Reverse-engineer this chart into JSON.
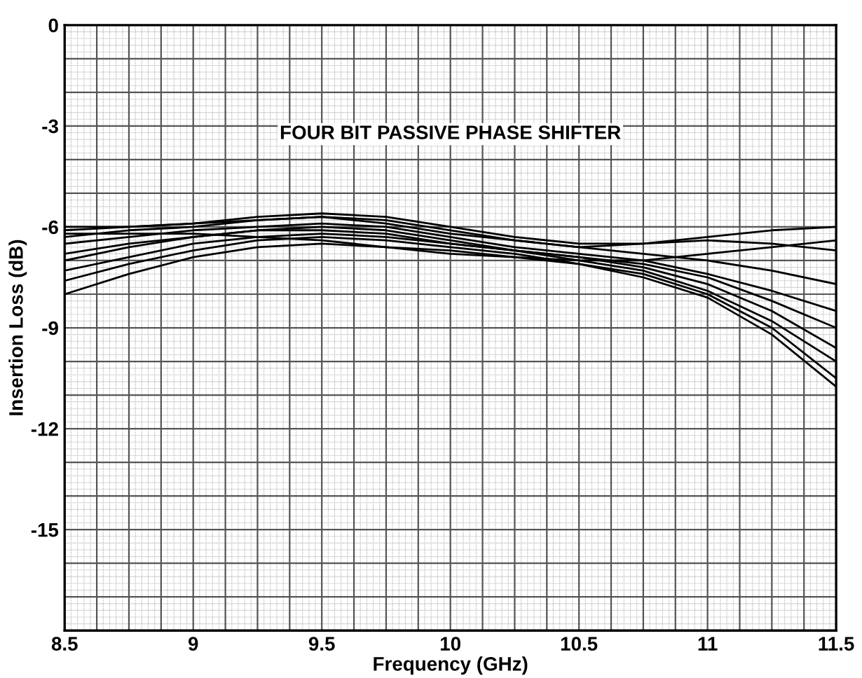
{
  "chart_data": {
    "type": "line",
    "title": "FOUR BIT PASSIVE PHASE SHIFTER",
    "xlabel": "Frequency (GHz)",
    "ylabel": "Insertion Loss (dB)",
    "x": [
      8.5,
      8.75,
      9,
      9.25,
      9.5,
      9.75,
      10,
      10.25,
      10.5,
      10.75,
      11,
      11.25,
      11.5
    ],
    "xlim": [
      8.5,
      11.5
    ],
    "xticks": [
      8.5,
      9,
      9.5,
      10,
      10.5,
      11,
      11.5
    ],
    "ylim": [
      -18,
      0
    ],
    "yticks": [
      -15,
      -12,
      -9,
      -6,
      -3,
      0
    ],
    "grid": true,
    "marker": "none",
    "line_style": "solid",
    "series": [
      {
        "color": "#000000",
        "values": [
          -6.0,
          -6.0,
          -5.9,
          -5.8,
          -5.7,
          -5.9,
          -6.2,
          -6.4,
          -6.6,
          -6.5,
          -6.3,
          -6.1,
          -6.0
        ]
      },
      {
        "color": "#000000",
        "values": [
          -6.1,
          -6.0,
          -5.9,
          -5.7,
          -5.6,
          -5.7,
          -6.0,
          -6.3,
          -6.5,
          -6.5,
          -6.4,
          -6.5,
          -6.7
        ]
      },
      {
        "color": "#000000",
        "values": [
          -6.3,
          -6.1,
          -6.0,
          -5.8,
          -5.7,
          -5.8,
          -6.1,
          -6.4,
          -6.6,
          -6.8,
          -7.0,
          -7.3,
          -7.7
        ]
      },
      {
        "color": "#000000",
        "values": [
          -6.5,
          -6.3,
          -6.1,
          -6.0,
          -5.9,
          -6.0,
          -6.3,
          -6.6,
          -6.8,
          -7.0,
          -7.4,
          -7.9,
          -8.5
        ]
      },
      {
        "color": "#000000",
        "values": [
          -7.0,
          -6.6,
          -6.3,
          -6.1,
          -6.0,
          -6.1,
          -6.4,
          -6.7,
          -6.9,
          -7.2,
          -7.7,
          -8.5,
          -9.6
        ]
      },
      {
        "color": "#000000",
        "values": [
          -7.3,
          -6.9,
          -6.5,
          -6.3,
          -6.2,
          -6.3,
          -6.5,
          -6.7,
          -7.0,
          -7.3,
          -7.9,
          -8.8,
          -10.0
        ]
      },
      {
        "color": "#000000",
        "values": [
          -7.6,
          -7.1,
          -6.7,
          -6.4,
          -6.3,
          -6.4,
          -6.6,
          -6.8,
          -7.1,
          -7.4,
          -8.0,
          -9.0,
          -10.5
        ]
      },
      {
        "color": "#000000",
        "values": [
          -8.0,
          -7.4,
          -6.9,
          -6.6,
          -6.5,
          -6.6,
          -6.7,
          -6.9,
          -7.1,
          -7.5,
          -8.1,
          -9.2,
          -10.75
        ]
      },
      {
        "color": "#000000",
        "values": [
          -6.2,
          -6.2,
          -6.2,
          -6.3,
          -6.4,
          -6.6,
          -6.8,
          -6.9,
          -7.0,
          -7.0,
          -6.8,
          -6.6,
          -6.4
        ]
      },
      {
        "color": "#000000",
        "values": [
          -6.8,
          -6.5,
          -6.3,
          -6.1,
          -6.1,
          -6.2,
          -6.5,
          -6.7,
          -6.9,
          -7.1,
          -7.5,
          -8.2,
          -9.0
        ]
      }
    ]
  }
}
